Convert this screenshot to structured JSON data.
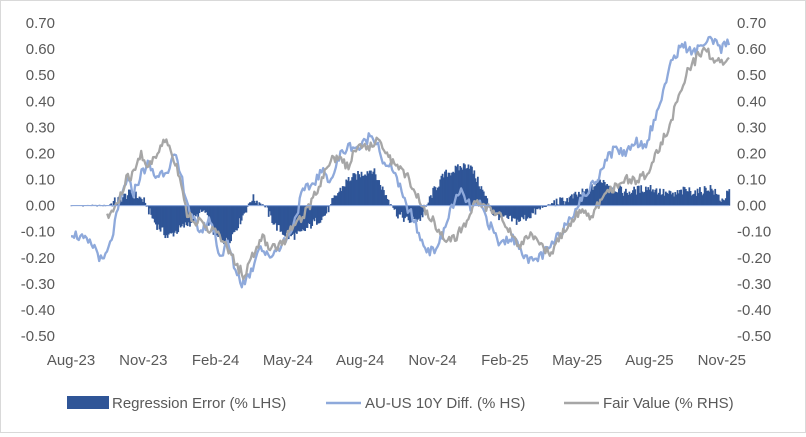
{
  "chart_data": {
    "type": "area",
    "title": "",
    "xlabel": "",
    "ylabel_left": "",
    "ylabel_right": "",
    "ylim": [
      -0.5,
      0.7
    ],
    "y_ticks_left": [
      "0.70",
      "0.60",
      "0.50",
      "0.40",
      "0.30",
      "0.20",
      "0.10",
      "0.00",
      "-0.10",
      "-0.20",
      "-0.30",
      "-0.40",
      "-0.50"
    ],
    "y_ticks_right": [
      "0.70",
      "0.60",
      "0.50",
      "0.40",
      "0.30",
      "0.20",
      "0.10",
      "0.00",
      "-0.10",
      "-0.20",
      "-0.30",
      "-0.40",
      "-0.50"
    ],
    "x_tick_labels": [
      "Aug-23",
      "Nov-23",
      "Feb-24",
      "May-24",
      "Aug-24",
      "Nov-24",
      "Feb-25",
      "May-25",
      "Aug-25",
      "Nov-25"
    ],
    "x_range_months": [
      0,
      27.3
    ],
    "legend_position": "bottom",
    "series": [
      {
        "name": "Regression Error (% LHS)",
        "kind": "area",
        "color": "#2F5597",
        "x_months": [
          0,
          1.5,
          2.5,
          3.0,
          3.5,
          4.0,
          4.5,
          5.0,
          5.5,
          6.0,
          6.5,
          7.0,
          7.5,
          8.0,
          8.5,
          9.0,
          9.5,
          10.0,
          10.5,
          11.0,
          11.5,
          12.0,
          12.5,
          13.0,
          13.5,
          14.0,
          14.5,
          15.0,
          15.5,
          16.0,
          16.5,
          17.0,
          17.5,
          18.0,
          18.5,
          19.0,
          19.5,
          20.0,
          20.5,
          21.0,
          21.5,
          22.0,
          22.5,
          23.0,
          23.5,
          24.0,
          24.5,
          25.0,
          25.5,
          26.0,
          26.5,
          27.0,
          27.3
        ],
        "values": [
          0.0,
          0.0,
          0.05,
          0.02,
          -0.07,
          -0.12,
          -0.09,
          -0.06,
          -0.02,
          -0.12,
          -0.14,
          -0.06,
          0.03,
          0.0,
          -0.08,
          -0.12,
          -0.11,
          -0.07,
          -0.04,
          0.04,
          0.1,
          0.12,
          0.14,
          0.05,
          -0.03,
          -0.06,
          -0.05,
          0.05,
          0.12,
          0.14,
          0.16,
          0.07,
          -0.03,
          -0.05,
          -0.06,
          -0.04,
          -0.01,
          0.01,
          0.02,
          0.04,
          0.06,
          0.1,
          0.07,
          0.05,
          0.06,
          0.07,
          0.05,
          0.04,
          0.06,
          0.05,
          0.07,
          0.02,
          0.05
        ]
      },
      {
        "name": "AU-US 10Y Diff. (% HS)",
        "kind": "line",
        "color": "#8EA9DB",
        "x_months": [
          0,
          0.5,
          1.0,
          1.3,
          1.6,
          2.0,
          2.3,
          2.6,
          2.9,
          3.2,
          3.5,
          4.0,
          4.3,
          4.6,
          5.0,
          5.4,
          5.8,
          6.2,
          6.5,
          6.8,
          7.1,
          7.5,
          7.8,
          8.2,
          8.6,
          9.0,
          9.3,
          9.6,
          10.0,
          10.4,
          10.8,
          11.2,
          11.6,
          12.0,
          12.4,
          12.7,
          13.0,
          13.4,
          13.8,
          14.2,
          14.6,
          15.0,
          15.4,
          15.8,
          16.2,
          16.6,
          17.0,
          17.4,
          17.8,
          18.2,
          18.6,
          19.0,
          19.4,
          19.8,
          20.2,
          20.6,
          21.0,
          21.4,
          21.8,
          22.2,
          22.6,
          23.0,
          23.4,
          23.8,
          24.2,
          24.6,
          25.0,
          25.4,
          25.8,
          26.2,
          26.6,
          27.0,
          27.3
        ],
        "values": [
          -0.1,
          -0.13,
          -0.16,
          -0.22,
          -0.16,
          0.0,
          0.1,
          0.05,
          0.12,
          0.16,
          0.11,
          0.14,
          0.19,
          0.1,
          -0.05,
          -0.1,
          -0.05,
          -0.2,
          -0.14,
          -0.24,
          -0.3,
          -0.25,
          -0.15,
          -0.2,
          -0.16,
          -0.12,
          -0.05,
          0.05,
          0.08,
          0.13,
          0.1,
          0.2,
          0.23,
          0.22,
          0.27,
          0.25,
          0.15,
          0.14,
          0.02,
          -0.05,
          -0.15,
          -0.18,
          -0.12,
          0.0,
          0.05,
          -0.01,
          0.0,
          -0.08,
          -0.15,
          -0.12,
          -0.15,
          -0.22,
          -0.2,
          -0.17,
          -0.12,
          -0.06,
          0.0,
          0.05,
          0.1,
          0.18,
          0.22,
          0.2,
          0.25,
          0.23,
          0.32,
          0.45,
          0.57,
          0.62,
          0.58,
          0.62,
          0.63,
          0.6,
          0.63
        ]
      },
      {
        "name": "Fair Value (% RHS)",
        "kind": "line",
        "color": "#A6A6A6",
        "x_months": [
          1.5,
          2.0,
          2.3,
          2.6,
          2.9,
          3.2,
          3.5,
          3.9,
          4.2,
          4.5,
          4.8,
          5.2,
          5.6,
          6.0,
          6.4,
          6.8,
          7.2,
          7.5,
          7.9,
          8.3,
          8.7,
          9.1,
          9.5,
          9.9,
          10.3,
          10.7,
          11.1,
          11.5,
          11.9,
          12.3,
          12.7,
          13.1,
          13.5,
          13.9,
          14.3,
          14.7,
          15.1,
          15.5,
          15.9,
          16.3,
          16.7,
          17.1,
          17.5,
          17.9,
          18.3,
          18.7,
          19.1,
          19.5,
          19.9,
          20.3,
          20.7,
          21.1,
          21.5,
          21.9,
          22.3,
          22.7,
          23.1,
          23.5,
          23.9,
          24.3,
          24.7,
          25.1,
          25.5,
          25.9,
          26.3,
          26.7,
          27.0,
          27.3
        ],
        "values": [
          -0.05,
          0.02,
          0.1,
          0.12,
          0.2,
          0.15,
          0.18,
          0.26,
          0.2,
          0.12,
          -0.03,
          -0.06,
          -0.08,
          -0.1,
          -0.15,
          -0.22,
          -0.27,
          -0.2,
          -0.12,
          -0.16,
          -0.15,
          -0.1,
          -0.05,
          0.0,
          0.08,
          0.17,
          0.19,
          0.15,
          0.24,
          0.22,
          0.25,
          0.2,
          0.15,
          0.12,
          0.05,
          -0.02,
          -0.07,
          -0.12,
          -0.13,
          -0.08,
          0.01,
          0.0,
          -0.02,
          -0.05,
          -0.12,
          -0.15,
          -0.12,
          -0.16,
          -0.18,
          -0.12,
          -0.08,
          -0.02,
          -0.04,
          0.0,
          0.06,
          0.08,
          0.1,
          0.1,
          0.12,
          0.2,
          0.28,
          0.38,
          0.5,
          0.56,
          0.6,
          0.56,
          0.55,
          0.58
        ]
      }
    ]
  }
}
